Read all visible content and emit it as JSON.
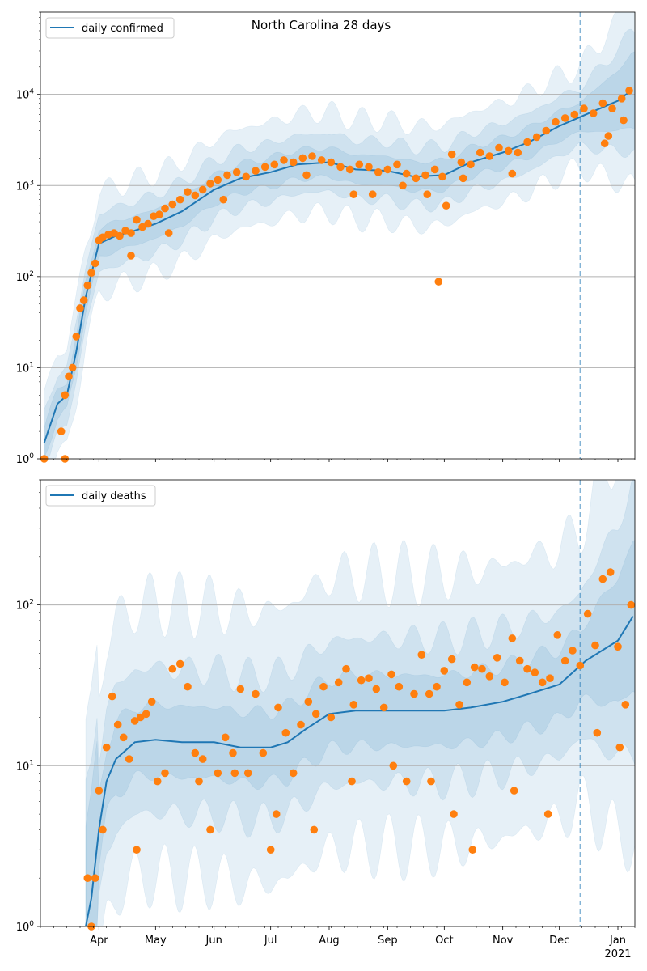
{
  "chart_data": [
    {
      "type": "line",
      "title": "North Carolina 28 days",
      "yscale": "log",
      "ylim": [
        1,
        80000
      ],
      "y_ticks": [
        1,
        10,
        100,
        1000,
        10000
      ],
      "y_tick_labels": [
        "10^0",
        "10^1",
        "10^2",
        "10^3",
        "10^4"
      ],
      "x_tick_labels": [
        "Apr",
        "May",
        "Jun",
        "Jul",
        "Aug",
        "Sep",
        "Oct",
        "Nov",
        "Dec",
        "Jan",
        "2021"
      ],
      "grid": "horizontal",
      "legend": "top-left",
      "vline_date": "2020-12-12",
      "series": [
        {
          "name": "daily confirmed",
          "kind": "line",
          "color": "#1f77b4",
          "x": [
            "2020-03-03",
            "2020-03-10",
            "2020-03-15",
            "2020-03-20",
            "2020-03-25",
            "2020-04-01",
            "2020-04-10",
            "2020-04-20",
            "2020-05-01",
            "2020-05-15",
            "2020-06-01",
            "2020-06-15",
            "2020-07-01",
            "2020-07-15",
            "2020-08-01",
            "2020-08-15",
            "2020-09-01",
            "2020-09-15",
            "2020-10-01",
            "2020-10-15",
            "2020-11-01",
            "2020-11-15",
            "2020-12-01",
            "2020-12-15",
            "2021-01-01",
            "2021-01-08"
          ],
          "y": [
            1.5,
            4,
            5,
            15,
            60,
            230,
            280,
            320,
            380,
            520,
            900,
            1200,
            1400,
            1700,
            1800,
            1500,
            1450,
            1250,
            1300,
            1800,
            2300,
            3000,
            4500,
            6000,
            8500,
            11000
          ]
        },
        {
          "name": "",
          "kind": "points",
          "color": "#ff7f0e",
          "x": [
            "2020-03-03",
            "2020-03-12",
            "2020-03-14",
            "2020-03-16",
            "2020-03-18",
            "2020-03-20",
            "2020-03-22",
            "2020-03-24",
            "2020-03-26",
            "2020-03-28",
            "2020-03-30",
            "2020-04-01",
            "2020-04-03",
            "2020-04-06",
            "2020-04-09",
            "2020-04-12",
            "2020-04-15",
            "2020-04-18",
            "2020-04-21",
            "2020-04-24",
            "2020-04-27",
            "2020-04-30",
            "2020-05-03",
            "2020-05-06",
            "2020-05-10",
            "2020-05-14",
            "2020-05-18",
            "2020-05-22",
            "2020-05-26",
            "2020-05-30",
            "2020-06-03",
            "2020-06-08",
            "2020-06-13",
            "2020-06-18",
            "2020-06-23",
            "2020-06-28",
            "2020-07-03",
            "2020-07-08",
            "2020-07-13",
            "2020-07-18",
            "2020-07-23",
            "2020-07-28",
            "2020-08-02",
            "2020-08-07",
            "2020-08-12",
            "2020-08-17",
            "2020-08-22",
            "2020-08-27",
            "2020-09-01",
            "2020-09-06",
            "2020-09-11",
            "2020-09-16",
            "2020-09-21",
            "2020-09-26",
            "2020-09-30",
            "2020-10-05",
            "2020-10-10",
            "2020-10-15",
            "2020-10-20",
            "2020-10-25",
            "2020-10-30",
            "2020-11-04",
            "2020-11-09",
            "2020-11-14",
            "2020-11-19",
            "2020-11-24",
            "2020-11-29",
            "2020-12-04",
            "2020-12-09",
            "2020-12-14",
            "2020-12-19",
            "2020-12-24",
            "2020-12-29",
            "2021-01-03",
            "2021-01-07",
            "2020-03-14",
            "2020-04-18",
            "2020-05-08",
            "2020-06-06",
            "2020-07-20",
            "2020-08-14",
            "2020-08-24",
            "2020-09-09",
            "2020-09-22",
            "2020-09-28",
            "2020-10-02",
            "2020-10-11",
            "2020-11-06",
            "2020-12-25",
            "2020-12-27",
            "2021-01-04"
          ],
          "y": [
            1,
            2,
            5,
            8,
            10,
            22,
            45,
            55,
            80,
            110,
            140,
            250,
            270,
            290,
            300,
            280,
            320,
            300,
            420,
            350,
            380,
            460,
            480,
            560,
            620,
            700,
            850,
            780,
            900,
            1050,
            1150,
            1300,
            1400,
            1250,
            1450,
            1600,
            1700,
            1900,
            1800,
            2000,
            2100,
            1900,
            1800,
            1600,
            1500,
            1700,
            1600,
            1400,
            1500,
            1700,
            1350,
            1200,
            1300,
            1500,
            1250,
            2200,
            1800,
            1700,
            2300,
            2100,
            2600,
            2400,
            2300,
            3000,
            3400,
            4000,
            5000,
            5500,
            6000,
            7000,
            6200,
            8000,
            7000,
            9000,
            11000,
            1,
            170,
            300,
            700,
            1300,
            800,
            800,
            1000,
            800,
            88,
            600,
            1200,
            1350,
            2900,
            3500,
            5200
          ]
        }
      ]
    },
    {
      "type": "line",
      "title": "",
      "yscale": "log",
      "ylim": [
        1,
        600
      ],
      "y_ticks": [
        1,
        10,
        100
      ],
      "y_tick_labels": [
        "10^0",
        "10^1",
        "10^2"
      ],
      "x_tick_labels": [
        "Apr",
        "May",
        "Jun",
        "Jul",
        "Aug",
        "Sep",
        "Oct",
        "Nov",
        "Dec",
        "Jan",
        "2021"
      ],
      "grid": "horizontal",
      "legend": "top-left",
      "vline_date": "2020-12-12",
      "series": [
        {
          "name": "daily deaths",
          "kind": "line",
          "color": "#1f77b4",
          "x": [
            "2020-03-25",
            "2020-03-28",
            "2020-04-01",
            "2020-04-05",
            "2020-04-10",
            "2020-04-20",
            "2020-05-01",
            "2020-05-15",
            "2020-06-01",
            "2020-06-15",
            "2020-07-01",
            "2020-07-10",
            "2020-07-20",
            "2020-08-01",
            "2020-08-15",
            "2020-09-01",
            "2020-09-15",
            "2020-10-01",
            "2020-10-15",
            "2020-11-01",
            "2020-11-15",
            "2020-12-01",
            "2020-12-15",
            "2021-01-01",
            "2021-01-09"
          ],
          "y": [
            1,
            1.5,
            4,
            8,
            11,
            14,
            14.5,
            14,
            14,
            13,
            13,
            14,
            17,
            21,
            22,
            22,
            22,
            22,
            23,
            25,
            28,
            32,
            45,
            60,
            85
          ]
        },
        {
          "name": "",
          "kind": "points",
          "color": "#ff7f0e",
          "x": [
            "2020-03-26",
            "2020-03-28",
            "2020-03-30",
            "2020-04-01",
            "2020-04-03",
            "2020-04-05",
            "2020-04-08",
            "2020-04-11",
            "2020-04-14",
            "2020-04-17",
            "2020-04-20",
            "2020-04-23",
            "2020-04-26",
            "2020-04-29",
            "2020-05-02",
            "2020-05-06",
            "2020-05-10",
            "2020-05-14",
            "2020-05-18",
            "2020-05-22",
            "2020-05-26",
            "2020-05-30",
            "2020-06-03",
            "2020-06-07",
            "2020-06-11",
            "2020-06-15",
            "2020-06-19",
            "2020-06-23",
            "2020-06-27",
            "2020-07-01",
            "2020-07-05",
            "2020-07-09",
            "2020-07-13",
            "2020-07-17",
            "2020-07-21",
            "2020-07-25",
            "2020-07-29",
            "2020-08-02",
            "2020-08-06",
            "2020-08-10",
            "2020-08-14",
            "2020-08-18",
            "2020-08-22",
            "2020-08-26",
            "2020-08-30",
            "2020-09-03",
            "2020-09-07",
            "2020-09-11",
            "2020-09-15",
            "2020-09-19",
            "2020-09-23",
            "2020-09-27",
            "2020-10-01",
            "2020-10-05",
            "2020-10-09",
            "2020-10-13",
            "2020-10-17",
            "2020-10-21",
            "2020-10-25",
            "2020-10-29",
            "2020-11-02",
            "2020-11-06",
            "2020-11-10",
            "2020-11-14",
            "2020-11-18",
            "2020-11-22",
            "2020-11-26",
            "2020-11-30",
            "2020-12-04",
            "2020-12-08",
            "2020-12-12",
            "2020-12-16",
            "2020-12-20",
            "2020-12-24",
            "2020-12-28",
            "2021-01-01",
            "2021-01-05",
            "2021-01-08",
            "2020-04-21",
            "2020-05-24",
            "2020-06-12",
            "2020-07-04",
            "2020-07-24",
            "2020-08-13",
            "2020-09-04",
            "2020-09-24",
            "2020-10-06",
            "2020-10-16",
            "2020-11-07",
            "2020-11-25",
            "2020-12-21",
            "2021-01-02"
          ],
          "y": [
            2,
            1,
            2,
            7,
            4,
            13,
            27,
            18,
            15,
            11,
            19,
            20,
            21,
            25,
            8,
            9,
            40,
            43,
            31,
            12,
            11,
            4,
            9,
            15,
            12,
            30,
            9,
            28,
            12,
            3,
            23,
            16,
            9,
            18,
            25,
            21,
            31,
            20,
            33,
            40,
            24,
            34,
            35,
            30,
            23,
            37,
            31,
            8,
            28,
            49,
            28,
            31,
            39,
            46,
            24,
            33,
            41,
            40,
            36,
            47,
            33,
            62,
            45,
            40,
            38,
            33,
            35,
            65,
            45,
            52,
            42,
            88,
            56,
            145,
            160,
            55,
            24,
            100,
            3,
            8,
            9,
            5,
            4,
            8,
            10,
            8,
            5,
            3,
            7,
            5,
            16,
            13
          ]
        }
      ]
    }
  ]
}
